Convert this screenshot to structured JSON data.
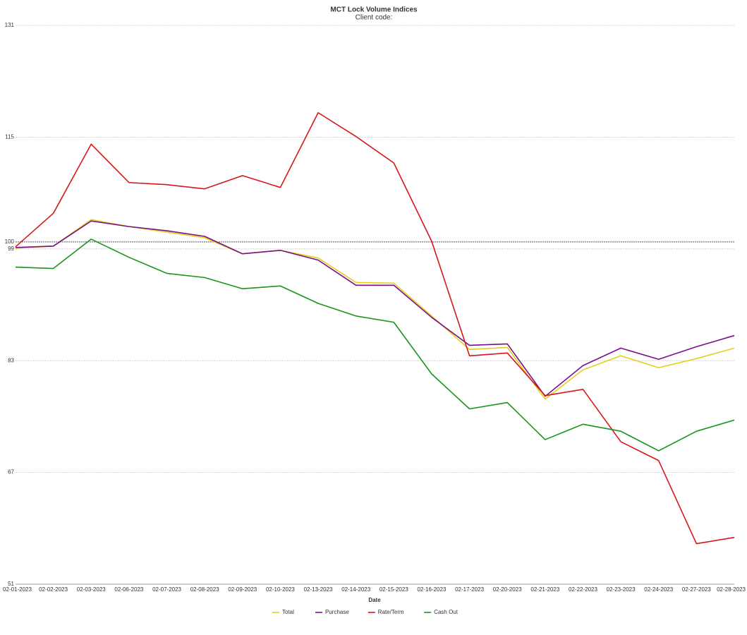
{
  "chart_data": {
    "type": "line",
    "title": "MCT Lock Volume Indices",
    "subtitle": "Client code:",
    "x_label": "Date",
    "categories": [
      "02-01-2023",
      "02-02-2023",
      "02-03-2023",
      "02-06-2023",
      "02-07-2023",
      "02-08-2023",
      "02-09-2023",
      "02-10-2023",
      "02-13-2023",
      "02-14-2023",
      "02-15-2023",
      "02-16-2023",
      "02-17-2023",
      "02-20-2023",
      "02-21-2023",
      "02-22-2023",
      "02-23-2023",
      "02-24-2023",
      "02-27-2023",
      "02-28-2023"
    ],
    "series": [
      {
        "name": "Total",
        "color": "#e3d01c",
        "values": [
          99.1,
          99.4,
          103.2,
          102.2,
          101.4,
          100.6,
          98.3,
          98.8,
          97.7,
          94.2,
          94.1,
          89.4,
          84.6,
          84.9,
          77.5,
          81.7,
          83.7,
          82.0,
          83.3,
          84.8
        ]
      },
      {
        "name": "Purchase",
        "color": "#7a0f8a",
        "values": [
          99.2,
          99.4,
          103.0,
          102.2,
          101.6,
          100.8,
          98.3,
          98.8,
          97.4,
          93.8,
          93.8,
          89.2,
          85.2,
          85.4,
          77.9,
          82.3,
          84.8,
          83.2,
          85.0,
          86.6
        ]
      },
      {
        "name": "Rate/Term",
        "color": "#d8151b",
        "values": [
          99.3,
          104.1,
          114.0,
          108.5,
          108.2,
          107.6,
          109.5,
          107.8,
          118.5,
          115.1,
          111.3,
          100.1,
          83.7,
          84.1,
          78.0,
          78.9,
          71.4,
          68.7,
          56.8,
          57.7
        ]
      },
      {
        "name": "Cash Out",
        "color": "#17941b",
        "values": [
          96.4,
          96.2,
          100.4,
          97.8,
          95.5,
          94.9,
          93.3,
          93.7,
          91.2,
          89.4,
          88.5,
          81.1,
          76.1,
          77.0,
          71.7,
          73.9,
          72.9,
          70.1,
          72.9,
          74.5
        ]
      }
    ],
    "ylim": [
      51,
      131
    ],
    "yticks": [
      51,
      67,
      83,
      99,
      115,
      131
    ],
    "reference_lines": [
      100
    ],
    "grid": true,
    "legend": "bottom"
  }
}
